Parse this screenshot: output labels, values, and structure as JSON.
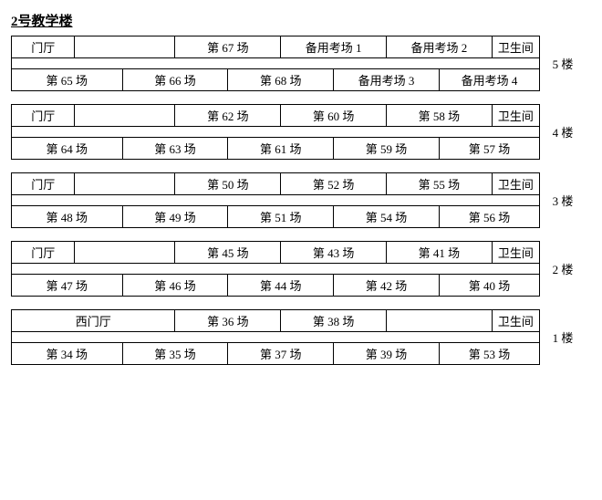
{
  "title": "2号教学楼",
  "labels": {
    "lobby": "门厅",
    "west_lobby": "西门厅",
    "washroom": "卫生间"
  },
  "floors": [
    {
      "label": "5 楼",
      "top_row": [
        {
          "text_key": "labels.lobby",
          "colspan": 1
        },
        {
          "text": "",
          "colspan": 2
        },
        {
          "text": "第 67 场",
          "colspan": 2
        },
        {
          "text": "备用考场 1",
          "colspan": 2
        },
        {
          "text": "备用考场 2",
          "colspan": 2
        },
        {
          "text_key": "labels.washroom",
          "colspan": 1
        }
      ],
      "bottom_row": [
        {
          "text": "第 65 场",
          "colspan": 2
        },
        {
          "text": "第 66 场",
          "colspan": 2
        },
        {
          "text": "第 68 场",
          "colspan": 2
        },
        {
          "text": "备用考场 3",
          "colspan": 2
        },
        {
          "text": "备用考场 4",
          "colspan": 2
        }
      ]
    },
    {
      "label": "4 楼",
      "top_row": [
        {
          "text_key": "labels.lobby",
          "colspan": 1
        },
        {
          "text": "",
          "colspan": 2
        },
        {
          "text": "第 62 场",
          "colspan": 2
        },
        {
          "text": "第 60 场",
          "colspan": 2
        },
        {
          "text": "第 58 场",
          "colspan": 2
        },
        {
          "text_key": "labels.washroom",
          "colspan": 1
        }
      ],
      "bottom_row": [
        {
          "text": "第 64 场",
          "colspan": 2
        },
        {
          "text": "第 63 场",
          "colspan": 2
        },
        {
          "text": "第 61 场",
          "colspan": 2
        },
        {
          "text": "第 59 场",
          "colspan": 2
        },
        {
          "text": "第 57 场",
          "colspan": 2
        }
      ]
    },
    {
      "label": "3 楼",
      "top_row": [
        {
          "text_key": "labels.lobby",
          "colspan": 1
        },
        {
          "text": "",
          "colspan": 2
        },
        {
          "text": "第 50 场",
          "colspan": 2
        },
        {
          "text": "第 52 场",
          "colspan": 2
        },
        {
          "text": "第 55 场",
          "colspan": 2
        },
        {
          "text_key": "labels.washroom",
          "colspan": 1
        }
      ],
      "bottom_row": [
        {
          "text": "第 48 场",
          "colspan": 2
        },
        {
          "text": "第 49 场",
          "colspan": 2
        },
        {
          "text": "第 51 场",
          "colspan": 2
        },
        {
          "text": "第 54 场",
          "colspan": 2
        },
        {
          "text": "第 56 场",
          "colspan": 2
        }
      ]
    },
    {
      "label": "2 楼",
      "top_row": [
        {
          "text_key": "labels.lobby",
          "colspan": 1
        },
        {
          "text": "",
          "colspan": 2
        },
        {
          "text": "第 45 场",
          "colspan": 2
        },
        {
          "text": "第 43 场",
          "colspan": 2
        },
        {
          "text": "第 41 场",
          "colspan": 2
        },
        {
          "text_key": "labels.washroom",
          "colspan": 1
        }
      ],
      "bottom_row": [
        {
          "text": "第 47 场",
          "colspan": 2
        },
        {
          "text": "第 46 场",
          "colspan": 2
        },
        {
          "text": "第 44 场",
          "colspan": 2
        },
        {
          "text": "第 42 场",
          "colspan": 2
        },
        {
          "text": "第 40 场",
          "colspan": 2
        }
      ]
    },
    {
      "label": "1 楼",
      "top_row": [
        {
          "text_key": "labels.west_lobby",
          "colspan": 3
        },
        {
          "text": "第 36 场",
          "colspan": 2
        },
        {
          "text": "第 38 场",
          "colspan": 2
        },
        {
          "text": "",
          "colspan": 2
        },
        {
          "text_key": "labels.washroom",
          "colspan": 1
        }
      ],
      "bottom_row": [
        {
          "text": "第 34 场",
          "colspan": 2
        },
        {
          "text": "第 35 场",
          "colspan": 2
        },
        {
          "text": "第 37 场",
          "colspan": 2
        },
        {
          "text": "第 39 场",
          "colspan": 2
        },
        {
          "text": "第 53 场",
          "colspan": 2
        }
      ]
    }
  ],
  "layout": {
    "col_widths_percent": [
      12,
      9,
      10,
      10,
      10,
      10,
      10,
      10,
      10,
      9
    ],
    "total_cols": 10
  }
}
